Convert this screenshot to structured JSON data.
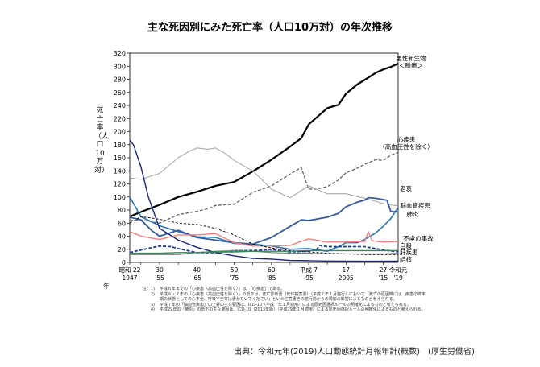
{
  "chart_data": {
    "type": "line",
    "title": "主な死因別にみた死亡率（人口10万対）の年次推移",
    "ylabel": "死亡率（人口10万対）",
    "xlabel": "年",
    "ylim": [
      0,
      320
    ],
    "yticks": [
      0,
      20,
      40,
      60,
      80,
      100,
      120,
      140,
      160,
      180,
      200,
      220,
      240,
      260,
      280,
      300,
      320
    ],
    "xlim": [
      1947,
      2019
    ],
    "xticks": [
      {
        "x": 1947,
        "top": "昭和 22",
        "bottom": "1947"
      },
      {
        "x": 1955,
        "top": "30",
        "bottom": "'55"
      },
      {
        "x": 1965,
        "top": "40",
        "bottom": "'65"
      },
      {
        "x": 1975,
        "top": "50",
        "bottom": "'75"
      },
      {
        "x": 1985,
        "top": "60",
        "bottom": "'85"
      },
      {
        "x": 1995,
        "top": "平成 7",
        "bottom": "'95"
      },
      {
        "x": 2005,
        "top": "17",
        "bottom": "2005"
      },
      {
        "x": 2015,
        "top": "27",
        "bottom": "'15"
      },
      {
        "x": 2019,
        "top": "令和元",
        "bottom": "'19"
      }
    ],
    "series": [
      {
        "name": "悪性新生物",
        "label_sub": "＜腫瘍＞",
        "color": "#000000",
        "width": 2.2,
        "dash": "",
        "x": [
          1947,
          1950,
          1955,
          1960,
          1965,
          1970,
          1975,
          1980,
          1985,
          1990,
          1993,
          1995,
          1997,
          2000,
          2003,
          2005,
          2008,
          2010,
          2013,
          2015,
          2017,
          2019
        ],
        "y": [
          70,
          77,
          88,
          100,
          108,
          117,
          123,
          139,
          157,
          177,
          190,
          211,
          221,
          236,
          241,
          258,
          272,
          279,
          290,
          295,
          299,
          304
        ]
      },
      {
        "name": "心疾患",
        "label_sub": "（高血圧性を除く）",
        "color": "#666666",
        "width": 1.3,
        "dash": "4,2",
        "x": [
          1947,
          1950,
          1955,
          1960,
          1965,
          1968,
          1970,
          1975,
          1980,
          1985,
          1990,
          1993,
          1994,
          1995,
          1997,
          2000,
          2003,
          2005,
          2008,
          2010,
          2013,
          2015,
          2017,
          2019
        ],
        "y": [
          64,
          65,
          60,
          73,
          78,
          82,
          87,
          89,
          107,
          117,
          135,
          145,
          128,
          112,
          112,
          116,
          126,
          137,
          144,
          150,
          157,
          156,
          164,
          168
        ]
      },
      {
        "name": "脳血管疾患",
        "label_sub": "",
        "color": "#aaaaaa",
        "width": 1.1,
        "dash": "",
        "x": [
          1947,
          1950,
          1955,
          1960,
          1963,
          1965,
          1968,
          1970,
          1973,
          1975,
          1980,
          1985,
          1990,
          1995,
          2000,
          2005,
          2010,
          2015,
          2019
        ],
        "y": [
          129,
          127,
          136,
          160,
          170,
          175,
          173,
          175,
          165,
          156,
          140,
          112,
          99,
          117,
          105,
          105,
          98,
          90,
          86
        ]
      },
      {
        "name": "老衰",
        "label_sub": "",
        "color": "#2e75b6",
        "width": 1.6,
        "dash": "",
        "x": [
          1947,
          1950,
          1955,
          1960,
          1965,
          1970,
          1975,
          1980,
          1985,
          1990,
          1995,
          2000,
          2003,
          2005,
          2008,
          2010,
          2013,
          2015,
          2017,
          2019
        ],
        "y": [
          100,
          70,
          56,
          47,
          39,
          38,
          29,
          28,
          25,
          20,
          21,
          17,
          24,
          30,
          30,
          35,
          45,
          55,
          67,
          84
        ]
      },
      {
        "name": "肺炎",
        "label_sub": "",
        "color": "#325aa0",
        "width": 1.8,
        "dash": "",
        "x": [
          1947,
          1950,
          1953,
          1955,
          1960,
          1965,
          1970,
          1975,
          1980,
          1985,
          1990,
          1993,
          1995,
          2000,
          2003,
          2005,
          2008,
          2010,
          2011,
          2013,
          2015,
          2016,
          2017,
          2019
        ],
        "y": [
          69,
          65,
          48,
          40,
          49,
          38,
          34,
          30,
          28,
          38,
          55,
          65,
          64,
          69,
          75,
          85,
          92,
          95,
          99,
          98,
          96,
          95,
          78,
          77
        ]
      },
      {
        "name": "不慮の事故",
        "label_sub": "",
        "color": "#f08080",
        "width": 1.4,
        "dash": "",
        "x": [
          1947,
          1950,
          1955,
          1960,
          1965,
          1970,
          1975,
          1980,
          1985,
          1990,
          1995,
          2000,
          2005,
          2010,
          2011,
          2012,
          2015,
          2019
        ],
        "y": [
          47,
          40,
          35,
          42,
          42,
          44,
          30,
          25,
          25,
          26,
          36,
          31,
          31,
          32,
          47,
          33,
          31,
          32
        ]
      },
      {
        "name": "自殺",
        "label_sub": "",
        "color": "#1c3c8c",
        "width": 1.8,
        "dash": "4,2",
        "x": [
          1947,
          1950,
          1955,
          1958,
          1960,
          1965,
          1970,
          1975,
          1980,
          1985,
          1990,
          1995,
          1997,
          1998,
          2000,
          2005,
          2010,
          2015,
          2019
        ],
        "y": [
          15,
          19,
          25,
          24,
          21,
          15,
          15,
          18,
          18,
          20,
          16,
          17,
          19,
          26,
          24,
          24,
          24,
          19,
          16
        ]
      },
      {
        "name": "肝疾患",
        "label_sub": "",
        "color": "#7f7f7f",
        "width": 1.1,
        "dash": "",
        "x": [
          1947,
          1955,
          1960,
          1965,
          1970,
          1975,
          1980,
          1985,
          1990,
          1995,
          2000,
          2005,
          2010,
          2015,
          2019
        ],
        "y": [
          12,
          12,
          12,
          15,
          17,
          18,
          17,
          15,
          14,
          14,
          13,
          13,
          13,
          13,
          14
        ]
      },
      {
        "name": "結核",
        "label_sub": "",
        "color": "#1a237e",
        "width": 1.4,
        "dash": "",
        "x": [
          1947,
          1948,
          1950,
          1952,
          1955,
          1960,
          1965,
          1970,
          1975,
          1980,
          1985,
          1990,
          1995,
          2000,
          2010,
          2019
        ],
        "y": [
          187,
          180,
          146,
          100,
          52,
          34,
          23,
          15,
          10,
          6,
          5,
          3,
          2.6,
          2.1,
          1.7,
          1.8
        ]
      },
      {
        "name": "",
        "label_sub": "",
        "color": "#000000",
        "width": 0.9,
        "dash": "3,2",
        "x": [
          1947,
          1950,
          1955,
          1960,
          1965,
          1970,
          1975,
          1980,
          1985,
          1990,
          1995,
          2000,
          2005,
          2010,
          2015,
          2019
        ],
        "y": [
          60,
          70,
          66,
          60,
          58,
          52,
          42,
          28,
          22,
          18,
          16,
          14,
          13,
          12,
          12,
          12
        ]
      },
      {
        "name": "",
        "label_sub": "",
        "color": "#2e8b57",
        "width": 1.4,
        "dash": "",
        "x": [
          1947,
          1950,
          1955,
          1960,
          1965,
          1970,
          1975,
          1980,
          1985,
          1990,
          1995,
          2000,
          2005,
          2010,
          2015,
          2019
        ],
        "y": [
          14,
          14,
          14,
          15,
          15,
          16,
          16,
          17,
          17,
          17,
          18,
          18,
          18,
          18,
          18,
          18
        ]
      }
    ]
  },
  "notes": [
    {
      "num": "注：1)",
      "text": "平成６年までの「心疾患（高血圧性を除く）」は、「心疾患」である。"
    },
    {
      "num": "2)",
      "text": "平成６・７年の「心疾患（高血圧性を除く）」の低下は、死亡診断書（死体検案書）（平成７年１月施行）において「死亡の原因欄には、疾患の終末期の状態としての心不全、呼吸不全等は書かないでください」という注意書きの施行前からの周知の影響によるものと考えられる。"
    },
    {
      "num": "3)",
      "text": "平成７年の「脳血管疾患」の上昇の主な要因は、ICD-10（平成７年１月適用）による原死因選択ルールの明確化によるものと考えられる。"
    },
    {
      "num": "4)",
      "text": "平成29年の「肺炎」の低下の主な要因は、ICD-10（2013年版）（平成29年１月適用）による原死因選択ルールの明確化によるものと考えられる。"
    }
  ],
  "source": "出典：令和元年(2019)人口動態統計月報年計(概数)　(厚生労働省)"
}
